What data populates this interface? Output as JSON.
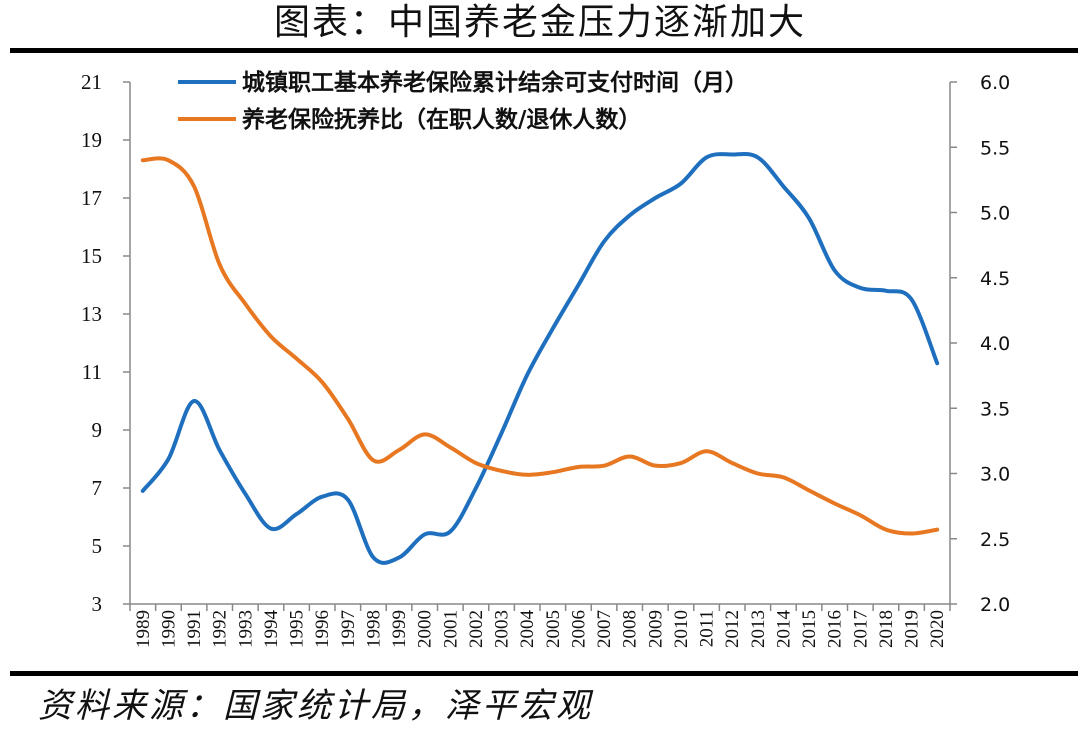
{
  "title": "图表：中国养老金压力逐渐加大",
  "source": "资料来源：国家统计局，泽平宏观",
  "chart_data": {
    "type": "line",
    "title": "图表：中国养老金压力逐渐加大",
    "x": [
      "1989",
      "1990",
      "1991",
      "1992",
      "1993",
      "1994",
      "1995",
      "1996",
      "1997",
      "1998",
      "1999",
      "2000",
      "2001",
      "2002",
      "2003",
      "2004",
      "2005",
      "2006",
      "2007",
      "2008",
      "2009",
      "2010",
      "2011",
      "2012",
      "2013",
      "2014",
      "2015",
      "2016",
      "2017",
      "2018",
      "2019",
      "2020"
    ],
    "y_left": {
      "ylim": [
        3,
        21
      ],
      "ticks": [
        "21",
        "19",
        "17",
        "15",
        "13",
        "11",
        "9",
        "7",
        "5",
        "3"
      ]
    },
    "y_right": {
      "ylim": [
        2.0,
        6.0
      ],
      "ticks": [
        "6.0",
        "5.5",
        "5.0",
        "4.5",
        "4.0",
        "3.5",
        "3.0",
        "2.5",
        "2.0"
      ]
    },
    "series": [
      {
        "name": "城镇职工基本养老保险累计结余可支付时间（月）",
        "axis": "left",
        "color": "#1f6fbf",
        "values": [
          6.9,
          8.0,
          10.0,
          8.3,
          6.8,
          5.6,
          6.1,
          6.7,
          6.6,
          4.6,
          4.6,
          5.4,
          5.5,
          7.0,
          8.9,
          10.9,
          12.5,
          14.0,
          15.5,
          16.4,
          17.0,
          17.5,
          18.4,
          18.5,
          18.4,
          17.4,
          16.3,
          14.5,
          13.9,
          13.8,
          13.5,
          11.3
        ]
      },
      {
        "name": "养老保险抚养比（在职人数/退休人数）",
        "axis": "right",
        "color": "#e87722",
        "values": [
          5.4,
          5.4,
          5.2,
          4.6,
          4.3,
          4.05,
          3.88,
          3.7,
          3.42,
          3.1,
          3.18,
          3.3,
          3.2,
          3.08,
          3.02,
          2.99,
          3.01,
          3.05,
          3.06,
          3.13,
          3.06,
          3.08,
          3.17,
          3.08,
          3.0,
          2.97,
          2.87,
          2.77,
          2.68,
          2.57,
          2.54,
          2.57
        ]
      }
    ],
    "grid": false,
    "legend_position": "top-center"
  }
}
